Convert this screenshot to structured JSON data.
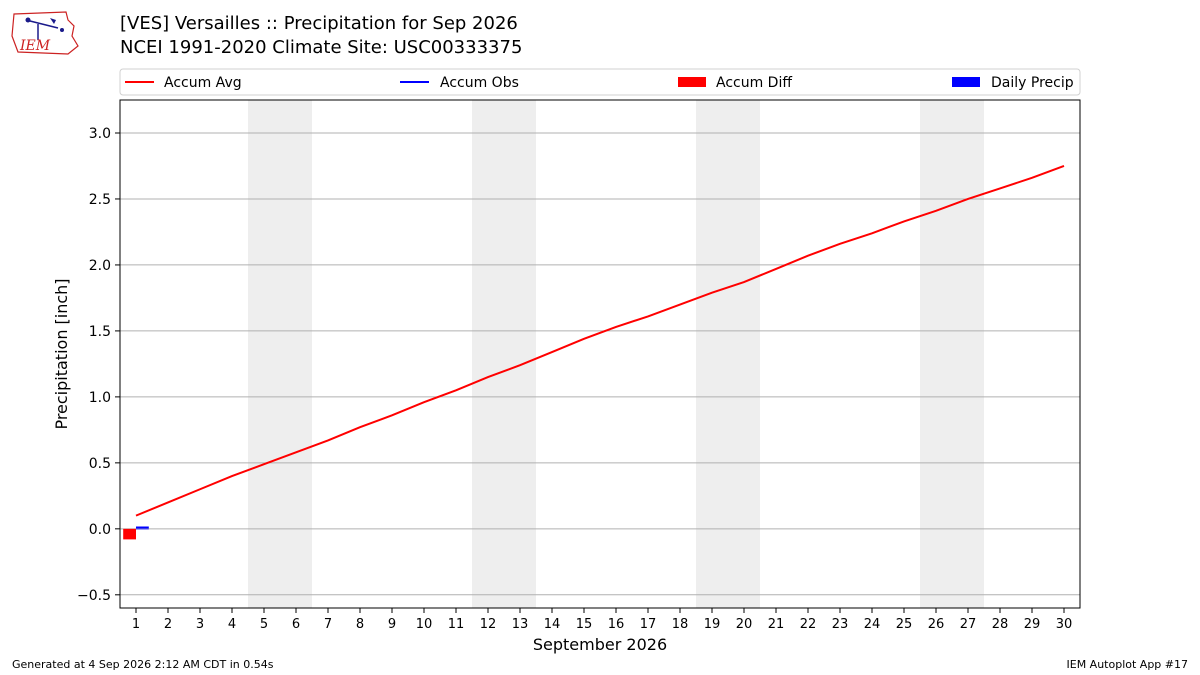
{
  "logo": {
    "text": "IEM"
  },
  "header": {
    "title_line1": "[VES] Versailles :: Precipitation for Sep 2026",
    "title_line2": "NCEI 1991-2020 Climate Site: USC00333375"
  },
  "footer": {
    "left": "Generated at 4 Sep 2026 2:12 AM CDT in 0.54s",
    "right": "IEM Autoplot App #17"
  },
  "colors": {
    "accum_avg": "#ff0000",
    "accum_obs": "#0000ff",
    "accum_diff": "#ff0000",
    "daily_precip": "#0000ff",
    "weekend_shade": "#eeeeee",
    "grid": "#b0b0b0"
  },
  "chart_data": {
    "type": "line",
    "xlabel": "September 2026",
    "ylabel": "Precipitation [inch]",
    "xlim": [
      0.5,
      30.5
    ],
    "ylim": [
      -0.6,
      3.25
    ],
    "yticks": [
      -0.5,
      0.0,
      0.5,
      1.0,
      1.5,
      2.0,
      2.5,
      3.0
    ],
    "ytick_labels": [
      "−0.5",
      "0.0",
      "0.5",
      "1.0",
      "1.5",
      "2.0",
      "2.5",
      "3.0"
    ],
    "x": [
      1,
      2,
      3,
      4,
      5,
      6,
      7,
      8,
      9,
      10,
      11,
      12,
      13,
      14,
      15,
      16,
      17,
      18,
      19,
      20,
      21,
      22,
      23,
      24,
      25,
      26,
      27,
      28,
      29,
      30
    ],
    "xtick_labels": [
      "1",
      "2",
      "3",
      "4",
      "5",
      "6",
      "7",
      "8",
      "9",
      "10",
      "11",
      "12",
      "13",
      "14",
      "15",
      "16",
      "17",
      "18",
      "19",
      "20",
      "21",
      "22",
      "23",
      "24",
      "25",
      "26",
      "27",
      "28",
      "29",
      "30"
    ],
    "grid": "horizontal",
    "legend_position": "top",
    "legend": [
      "Accum Avg",
      "Accum Obs",
      "Accum Diff",
      "Daily Precip"
    ],
    "weekend_days": [
      5,
      6,
      12,
      13,
      19,
      20,
      26,
      27
    ],
    "series": [
      {
        "name": "Accum Avg",
        "type": "line",
        "values": [
          0.1,
          0.2,
          0.3,
          0.4,
          0.49,
          0.58,
          0.67,
          0.77,
          0.86,
          0.96,
          1.05,
          1.15,
          1.24,
          1.34,
          1.44,
          1.53,
          1.61,
          1.7,
          1.79,
          1.87,
          1.97,
          2.07,
          2.16,
          2.24,
          2.33,
          2.41,
          2.5,
          2.58,
          2.66,
          2.75
        ]
      },
      {
        "name": "Accum Obs",
        "type": "line",
        "x": [
          1
        ],
        "values": [
          0.01
        ]
      },
      {
        "name": "Accum Diff",
        "type": "bar",
        "x": [
          1
        ],
        "values": [
          -0.08
        ]
      },
      {
        "name": "Daily Precip",
        "type": "bar",
        "x": [
          1
        ],
        "values": [
          0.0
        ]
      }
    ]
  }
}
